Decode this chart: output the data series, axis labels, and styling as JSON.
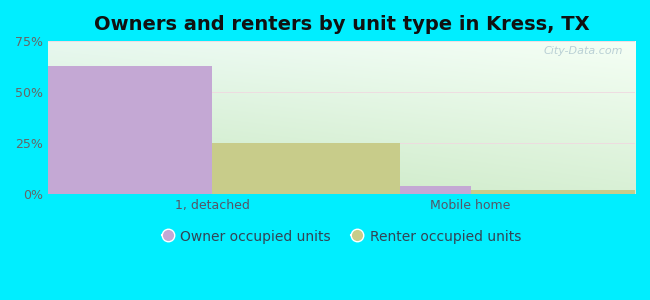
{
  "title": "Owners and renters by unit type in Kress, TX",
  "categories": [
    "1, detached",
    "Mobile home"
  ],
  "owner_values": [
    63,
    4
  ],
  "renter_values": [
    25,
    2
  ],
  "owner_color": "#c4a8d4",
  "renter_color": "#c8cc8a",
  "bar_width": 0.32,
  "ylim": [
    0,
    75
  ],
  "yticks": [
    0,
    25,
    50,
    75
  ],
  "ytick_labels": [
    "0%",
    "25%",
    "50%",
    "75%"
  ],
  "owner_label": "Owner occupied units",
  "renter_label": "Renter occupied units",
  "bg_color": "#00eeff",
  "grad_bottom_left": "#c8e8c0",
  "grad_top_right": "#f0f8f0",
  "title_fontsize": 14,
  "axis_fontsize": 9,
  "legend_fontsize": 10,
  "watermark": "City-Data.com",
  "group_positions": [
    0.28,
    0.72
  ],
  "xlim": [
    0.0,
    1.0
  ]
}
